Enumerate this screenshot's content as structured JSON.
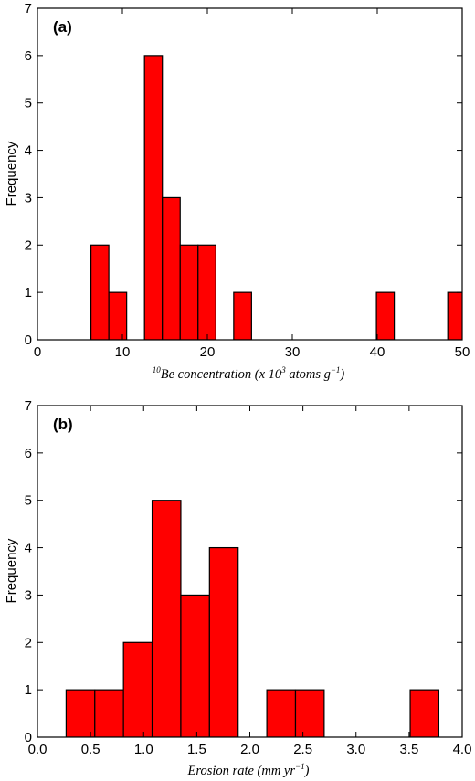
{
  "figure": {
    "background": "#ffffff",
    "bar_color": "#ff0000",
    "edge_color": "#000000"
  },
  "chart_data": [
    {
      "type": "bar",
      "panel_label": "(a)",
      "xlabel_parts": {
        "sup": "10",
        "text": "Be concentration (x 10",
        "exp": "3",
        "text2": " atoms g",
        "exp2": "−1",
        "text3": ")"
      },
      "ylabel": "Frequency",
      "xlim": [
        0,
        50
      ],
      "ylim": [
        0,
        7
      ],
      "xticks": [
        0,
        10,
        20,
        30,
        40,
        50
      ],
      "yticks": [
        0,
        1,
        2,
        3,
        4,
        5,
        6,
        7
      ],
      "bins": [
        {
          "x0": 6.3,
          "x1": 8.4,
          "value": 2
        },
        {
          "x0": 8.4,
          "x1": 10.5,
          "value": 1
        },
        {
          "x0": 12.6,
          "x1": 14.7,
          "value": 6
        },
        {
          "x0": 14.7,
          "x1": 16.8,
          "value": 3
        },
        {
          "x0": 16.8,
          "x1": 18.9,
          "value": 2
        },
        {
          "x0": 18.9,
          "x1": 21.0,
          "value": 2
        },
        {
          "x0": 23.1,
          "x1": 25.2,
          "value": 1
        },
        {
          "x0": 39.9,
          "x1": 42.0,
          "value": 1
        },
        {
          "x0": 48.3,
          "x1": 50.4,
          "value": 1
        }
      ]
    },
    {
      "type": "bar",
      "panel_label": "(b)",
      "xlabel_parts": {
        "text": "Erosion rate (mm yr",
        "exp": "−1",
        "text2": ")"
      },
      "ylabel": "Frequency",
      "xlim": [
        0.0,
        4.0
      ],
      "ylim": [
        0,
        7
      ],
      "xticks": [
        "0.0",
        "0.5",
        "1.0",
        "1.5",
        "2.0",
        "2.5",
        "3.0",
        "3.5",
        "4.0"
      ],
      "yticks": [
        0,
        1,
        2,
        3,
        4,
        5,
        6,
        7
      ],
      "bins": [
        {
          "x0": 0.27,
          "x1": 0.54,
          "value": 1
        },
        {
          "x0": 0.54,
          "x1": 0.81,
          "value": 1
        },
        {
          "x0": 0.81,
          "x1": 1.08,
          "value": 2
        },
        {
          "x0": 1.08,
          "x1": 1.35,
          "value": 5
        },
        {
          "x0": 1.35,
          "x1": 1.62,
          "value": 3
        },
        {
          "x0": 1.62,
          "x1": 1.89,
          "value": 4
        },
        {
          "x0": 2.16,
          "x1": 2.43,
          "value": 1
        },
        {
          "x0": 2.43,
          "x1": 2.7,
          "value": 1
        },
        {
          "x0": 3.51,
          "x1": 3.78,
          "value": 1
        }
      ]
    }
  ]
}
